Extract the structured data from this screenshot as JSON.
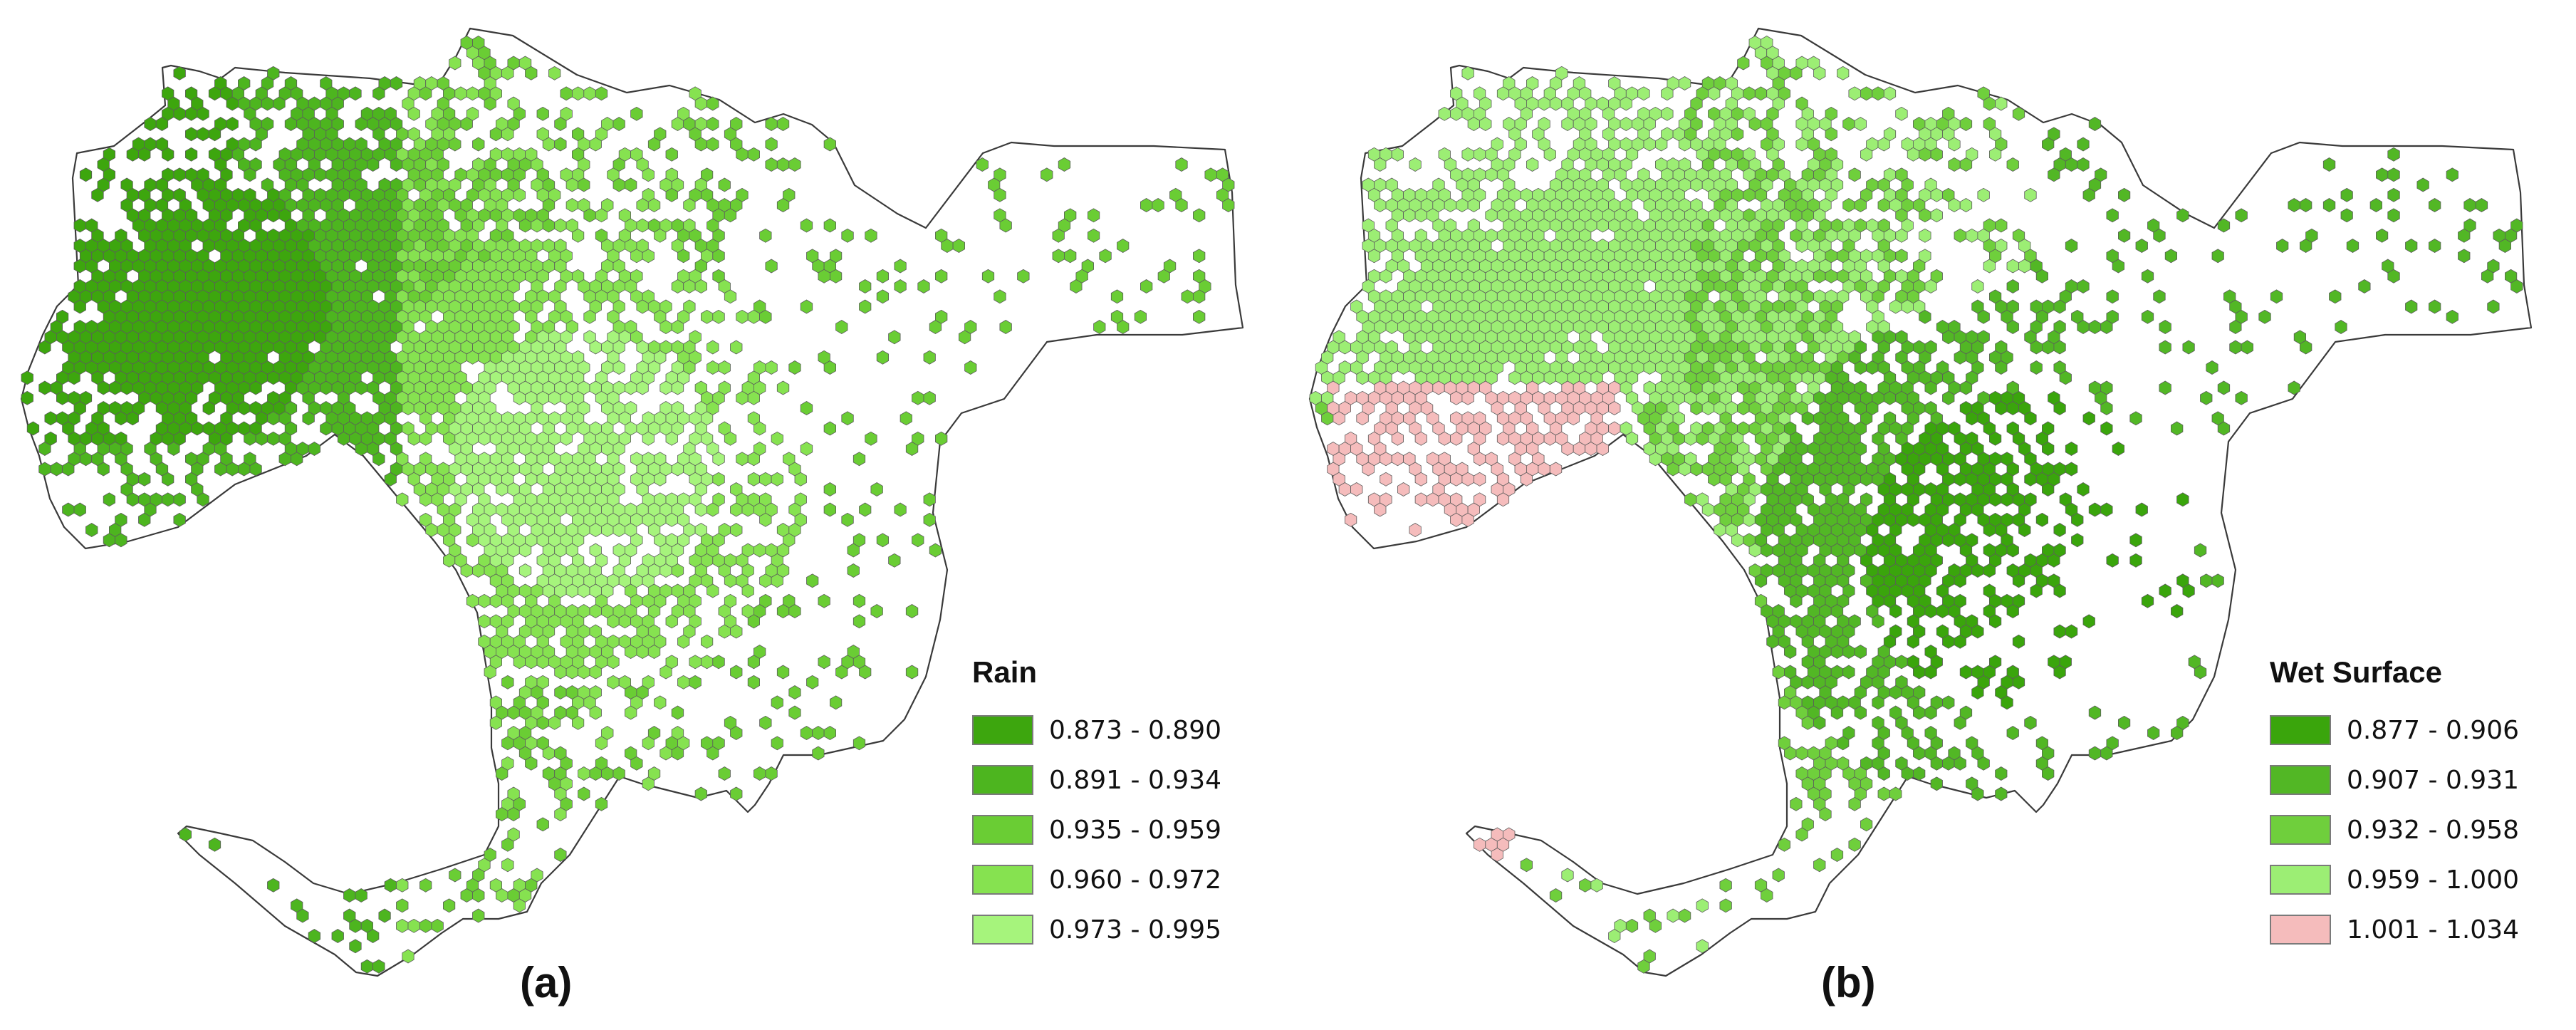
{
  "panels": [
    {
      "id": "a",
      "label": "(a)",
      "legend": {
        "title": "Rain",
        "classes": [
          {
            "range": "0.873 - 0.890",
            "color": "#3da60e"
          },
          {
            "range": "0.891 - 0.934",
            "color": "#4db51f"
          },
          {
            "range": "0.935 - 0.959",
            "color": "#6acd34"
          },
          {
            "range": "0.960 - 0.972",
            "color": "#86e250"
          },
          {
            "range": "0.973 - 0.995",
            "color": "#a6f47c"
          }
        ]
      }
    },
    {
      "id": "b",
      "label": "(b)",
      "legend": {
        "title": "Wet Surface",
        "classes": [
          {
            "range": "0.877 - 0.906",
            "color": "#3aa50c"
          },
          {
            "range": "0.907 - 0.931",
            "color": "#52b725"
          },
          {
            "range": "0.932 - 0.958",
            "color": "#6fcf3c"
          },
          {
            "range": "0.959 - 1.000",
            "color": "#9cee74"
          },
          {
            "range": "1.001 - 1.034",
            "color": "#f5bcbc"
          }
        ]
      }
    }
  ],
  "hex_stroke": "#5c5c5c",
  "outline_color": "#3a3a3a"
}
